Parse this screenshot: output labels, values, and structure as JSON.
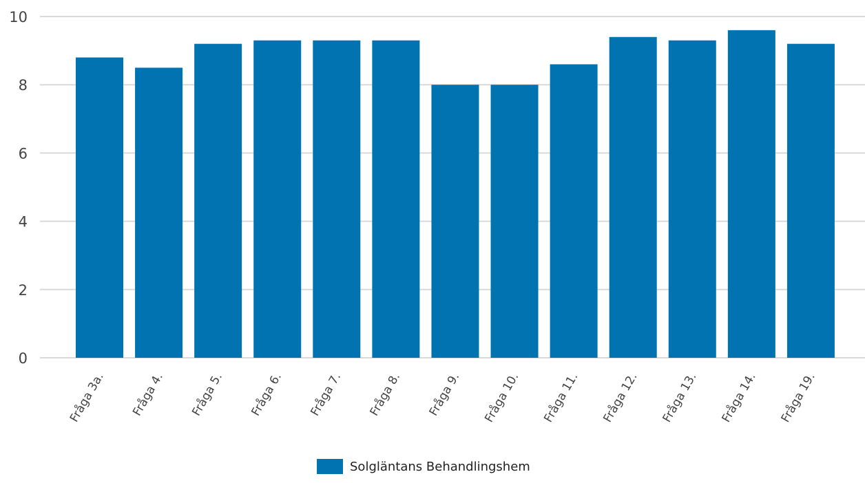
{
  "chart_data": {
    "type": "bar",
    "categories": [
      "Fråga 3a.",
      "Fråga 4.",
      "Fråga 5.",
      "Fråga 6.",
      "Fråga 7.",
      "Fråga 8.",
      "Fråga 9.",
      "Fråga 10.",
      "Fråga 11.",
      "Fråga 12.",
      "Fråga 13.",
      "Fråga 14.",
      "Fråga 19."
    ],
    "series": [
      {
        "name": "Solgläntans Behandlingshem",
        "values": [
          8.8,
          8.5,
          9.2,
          9.3,
          9.3,
          9.3,
          8.0,
          8.0,
          8.6,
          9.4,
          9.3,
          9.6,
          9.2
        ],
        "color": "#0073b0"
      }
    ],
    "ylim": [
      0,
      10
    ],
    "yticks": [
      "0",
      "2",
      "4",
      "6",
      "8",
      "10"
    ],
    "ytick_values": [
      0,
      2,
      4,
      6,
      8,
      10
    ],
    "grid": true,
    "legend_position": "bottom-center",
    "gridline_color": "#d9d9d9"
  }
}
